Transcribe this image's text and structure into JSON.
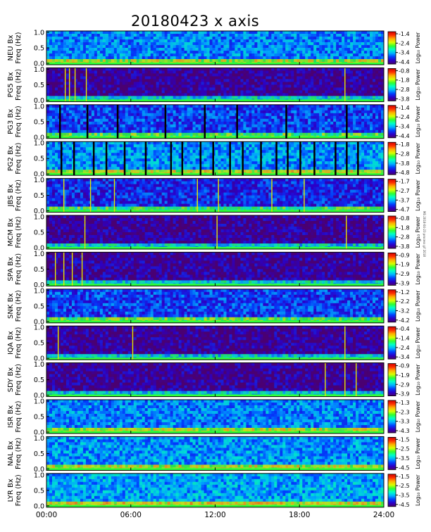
{
  "chart_data": {
    "type": "heatmap",
    "title": "20180423 x axis",
    "x_tick_labels": [
      "00:00",
      "06:00",
      "12:00",
      "18:00",
      "24:00"
    ],
    "x_range_hours": [
      0,
      24
    ],
    "y_range_hz": [
      0,
      1.0
    ],
    "y_tick_labels": [
      "0.0",
      "0.5",
      "1.0"
    ],
    "ylabel": "Freq (Hz)",
    "colorbar_label": "Log₁₀ Power",
    "colormap": "rainbow (purple-blue-cyan-green-yellow-red)",
    "panels": [
      {
        "station": "NEU",
        "ylabel": "NEU Bx",
        "colorbar_ticks": [
          "-1.4",
          "-2.4",
          "-3.4",
          "-4.4"
        ],
        "colorbar_range": [
          -4.4,
          -1.4
        ],
        "background_level": 0.3,
        "lines": [],
        "gaps": []
      },
      {
        "station": "PG5",
        "ylabel": "PG5 Bx",
        "colorbar_ticks": [
          "-0.8",
          "-1.8",
          "-2.8",
          "-3.8"
        ],
        "colorbar_range": [
          -3.8,
          -0.8
        ],
        "background_level": 0.05,
        "lines": [
          1.3,
          1.6,
          2.0,
          2.8,
          21.2
        ],
        "gaps": []
      },
      {
        "station": "PG3",
        "ylabel": "PG3 Bx",
        "colorbar_ticks": [
          "-1.4",
          "-2.4",
          "-3.4",
          "-4.4"
        ],
        "colorbar_range": [
          -4.4,
          -1.4
        ],
        "background_level": 0.22,
        "lines": [],
        "gaps": [
          0.9,
          2.85,
          5.0,
          8.4,
          11.2,
          13.5,
          17.0,
          21.3
        ]
      },
      {
        "station": "PG2",
        "ylabel": "PG2 Bx",
        "colorbar_ticks": [
          "-1.8",
          "-2.8",
          "-3.8",
          "-4.8"
        ],
        "colorbar_range": [
          -4.8,
          -1.8
        ],
        "background_level": 0.32,
        "lines": [],
        "gaps": [
          1.0,
          1.9,
          3.3,
          4.2,
          5.5,
          7.0,
          8.8,
          9.6,
          10.9,
          11.8,
          13.0,
          13.9,
          15.2,
          16.3,
          17.1,
          18.0,
          19.0,
          20.5,
          21.3,
          22.1
        ]
      },
      {
        "station": "JBS",
        "ylabel": "JBS Bx",
        "colorbar_ticks": [
          "-1.7",
          "-2.7",
          "-3.7",
          "-4.7"
        ],
        "colorbar_range": [
          -4.7,
          -1.7
        ],
        "background_level": 0.18,
        "lines": [
          1.2,
          3.1,
          4.8,
          10.7,
          12.2,
          16.0,
          18.3
        ],
        "gaps": []
      },
      {
        "station": "MCM",
        "ylabel": "MCM Bx",
        "colorbar_ticks": [
          "-0.8",
          "-1.8",
          "-2.8",
          "-3.8"
        ],
        "colorbar_range": [
          -3.8,
          -0.8
        ],
        "background_level": 0.05,
        "lines": [
          2.7,
          12.1,
          21.3
        ],
        "gaps": []
      },
      {
        "station": "SPA",
        "ylabel": "SPA Bx",
        "colorbar_ticks": [
          "-0.9",
          "-1.9",
          "-2.9",
          "-3.9"
        ],
        "colorbar_range": [
          -3.9,
          -0.9
        ],
        "background_level": 0.06,
        "lines": [
          0.6,
          1.2,
          1.8,
          2.5
        ],
        "gaps": []
      },
      {
        "station": "SNK",
        "ylabel": "SNK Bx",
        "colorbar_ticks": [
          "-1.2",
          "-2.2",
          "-3.2",
          "-4.2"
        ],
        "colorbar_range": [
          -4.2,
          -1.2
        ],
        "background_level": 0.22,
        "lines": [],
        "gaps": []
      },
      {
        "station": "IQA",
        "ylabel": "IQA Bx",
        "colorbar_ticks": [
          "-0.4",
          "-1.4",
          "-2.4",
          "-3.4"
        ],
        "colorbar_range": [
          -3.4,
          -0.4
        ],
        "background_level": 0.05,
        "lines": [
          0.8,
          6.1,
          21.2
        ],
        "gaps": []
      },
      {
        "station": "SDY",
        "ylabel": "SDY Bx",
        "colorbar_ticks": [
          "-0.9",
          "-1.9",
          "-2.9",
          "-3.9"
        ],
        "colorbar_range": [
          -3.9,
          -0.9
        ],
        "background_level": 0.05,
        "lines": [
          19.8,
          21.2,
          22.0
        ],
        "gaps": []
      },
      {
        "station": "ISR",
        "ylabel": "ISR Bx",
        "colorbar_ticks": [
          "-1.3",
          "-2.3",
          "-3.3",
          "-4.3"
        ],
        "colorbar_range": [
          -4.3,
          -1.3
        ],
        "background_level": 0.3,
        "lines": [],
        "gaps": []
      },
      {
        "station": "NAL",
        "ylabel": "NAL Bx",
        "colorbar_ticks": [
          "-1.5",
          "-2.5",
          "-3.5",
          "-4.5"
        ],
        "colorbar_range": [
          -4.5,
          -1.5
        ],
        "background_level": 0.32,
        "lines": [],
        "gaps": []
      },
      {
        "station": "LYR",
        "ylabel": "LYR Bx",
        "colorbar_ticks": [
          "-1.5",
          "-2.5",
          "-3.5",
          "-4.5"
        ],
        "colorbar_range": [
          -4.5,
          -1.5
        ],
        "background_level": 0.34,
        "lines": [],
        "gaps": []
      }
    ]
  },
  "side_note": "MS 2018-04-23 process gif 2018"
}
